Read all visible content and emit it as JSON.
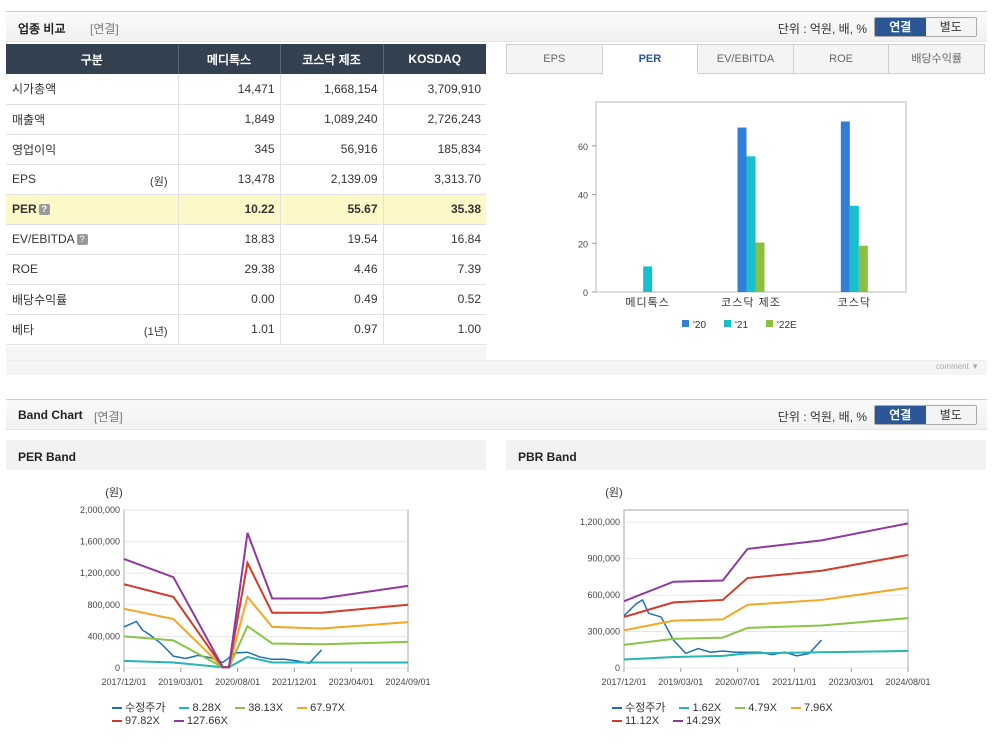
{
  "section1": {
    "title": "업종 비교",
    "sub": "[연결]",
    "unit": "단위 : 억원, 배, %",
    "toggle": [
      "연결",
      "별도"
    ]
  },
  "table": {
    "headers": [
      "구분",
      "메디톡스",
      "코스닥 제조",
      "KOSDAQ"
    ],
    "rows": [
      {
        "label": "시가총액",
        "unit": "",
        "values": [
          "14,471",
          "1,668,154",
          "3,709,910"
        ]
      },
      {
        "label": "매출액",
        "unit": "",
        "values": [
          "1,849",
          "1,089,240",
          "2,726,243"
        ]
      },
      {
        "label": "영업이익",
        "unit": "",
        "values": [
          "345",
          "56,916",
          "185,834"
        ]
      },
      {
        "label": "EPS",
        "unit": "(원)",
        "values": [
          "13,478",
          "2,139.09",
          "3,313.70"
        ]
      },
      {
        "label": "PER",
        "unit": "",
        "values": [
          "10.22",
          "55.67",
          "35.38"
        ]
      },
      {
        "label": "EV/EBITDA",
        "unit": "",
        "values": [
          "18.83",
          "19.54",
          "16.84"
        ]
      },
      {
        "label": "ROE",
        "unit": "",
        "values": [
          "29.38",
          "4.46",
          "7.39"
        ]
      },
      {
        "label": "배당수익률",
        "unit": "",
        "values": [
          "0.00",
          "0.49",
          "0.52"
        ]
      },
      {
        "label": "베타",
        "unit": "(1년)",
        "values": [
          "1.01",
          "0.97",
          "1.00"
        ]
      }
    ]
  },
  "tabs": [
    "EPS",
    "PER",
    "EV/EBITDA",
    "ROE",
    "배당수익률"
  ],
  "comment_label": "comment",
  "section2": {
    "title": "Band Chart",
    "sub": "[연결]",
    "unit": "단위 : 억원, 배, %",
    "toggle": [
      "연결",
      "별도"
    ]
  },
  "colors": {
    "s20": "#2f7fd8",
    "s21": "#19c0cc",
    "s22": "#8cbf3f",
    "price": "#1f6fb5",
    "l1": "#26b5b0",
    "l2": "#8bc34a",
    "l3": "#f5a623",
    "l4": "#d23b2a",
    "l5": "#8e3a9e"
  },
  "chart_data": [
    {
      "type": "bar",
      "title": "PER",
      "categories": [
        "메디톡스",
        "코스닥 제조",
        "코스닥"
      ],
      "series": [
        {
          "name": "'20",
          "values": [
            null,
            67.5,
            70.0
          ]
        },
        {
          "name": "'21",
          "values": [
            10.5,
            55.7,
            35.4
          ]
        },
        {
          "name": "'22E",
          "values": [
            null,
            20.3,
            19.0
          ]
        }
      ],
      "ylim": [
        0,
        80
      ],
      "yticks": [
        0,
        20,
        40,
        60
      ]
    },
    {
      "type": "line",
      "title": "PER Band",
      "ylabel": "(원)",
      "ylim": [
        0,
        2000000
      ],
      "yticks": [
        "0",
        "400,000",
        "800,000",
        "1,200,000",
        "1,600,000",
        "2,000,000"
      ],
      "xticks": [
        "2017/12/01",
        "2019/03/01",
        "2020/08/01",
        "2021/12/01",
        "2023/04/01",
        "2024/09/01"
      ],
      "series": [
        {
          "name": "수정주가",
          "points": [
            [
              0,
              520000
            ],
            [
              1,
              590000
            ],
            [
              1.5,
              480000
            ],
            [
              2,
              430000
            ],
            [
              3,
              310000
            ],
            [
              4,
              150000
            ],
            [
              5,
              120000
            ],
            [
              6,
              160000
            ],
            [
              7,
              130000
            ],
            [
              8,
              70000
            ],
            [
              9,
              190000
            ],
            [
              10,
              200000
            ],
            [
              11,
              140000
            ],
            [
              12,
              110000
            ],
            [
              13,
              110000
            ],
            [
              14,
              90000
            ],
            [
              15,
              60000
            ],
            [
              16,
              230000
            ]
          ]
        },
        {
          "name": "8.28X",
          "points": [
            [
              0,
              90000
            ],
            [
              4,
              70000
            ],
            [
              8,
              10000
            ],
            [
              8.5,
              10000
            ],
            [
              10,
              140000
            ],
            [
              12,
              70000
            ],
            [
              16,
              70000
            ],
            [
              23,
              70000
            ]
          ]
        },
        {
          "name": "38.13X",
          "points": [
            [
              0,
              400000
            ],
            [
              4,
              350000
            ],
            [
              8,
              10000
            ],
            [
              8.5,
              10000
            ],
            [
              10,
              530000
            ],
            [
              12,
              310000
            ],
            [
              16,
              300000
            ],
            [
              23,
              330000
            ]
          ]
        },
        {
          "name": "67.97X",
          "points": [
            [
              0,
              750000
            ],
            [
              4,
              620000
            ],
            [
              8,
              10000
            ],
            [
              8.5,
              10000
            ],
            [
              10,
              900000
            ],
            [
              12,
              520000
            ],
            [
              16,
              500000
            ],
            [
              23,
              580000
            ]
          ]
        },
        {
          "name": "97.82X",
          "points": [
            [
              0,
              1060000
            ],
            [
              4,
              900000
            ],
            [
              8,
              10000
            ],
            [
              8.5,
              10000
            ],
            [
              10,
              1330000
            ],
            [
              12,
              700000
            ],
            [
              16,
              700000
            ],
            [
              23,
              800000
            ]
          ]
        },
        {
          "name": "127.66X",
          "points": [
            [
              0,
              1380000
            ],
            [
              4,
              1150000
            ],
            [
              8,
              10000
            ],
            [
              8.5,
              10000
            ],
            [
              10,
              1710000
            ],
            [
              12,
              880000
            ],
            [
              16,
              880000
            ],
            [
              23,
              1040000
            ]
          ]
        }
      ]
    },
    {
      "type": "line",
      "title": "PBR Band",
      "ylabel": "(원)",
      "ylim": [
        0,
        1300000
      ],
      "yticks": [
        "0",
        "300,000",
        "600,000",
        "900,000",
        "1,200,000"
      ],
      "xticks": [
        "2017/12/01",
        "2019/03/01",
        "2020/07/01",
        "2021/11/01",
        "2023/03/01",
        "2024/08/01"
      ],
      "series": [
        {
          "name": "수정주가",
          "points": [
            [
              0,
              430000
            ],
            [
              1,
              530000
            ],
            [
              1.5,
              560000
            ],
            [
              2,
              450000
            ],
            [
              3,
              420000
            ],
            [
              4,
              230000
            ],
            [
              5,
              120000
            ],
            [
              6,
              160000
            ],
            [
              7,
              130000
            ],
            [
              8,
              140000
            ],
            [
              9,
              130000
            ],
            [
              10,
              130000
            ],
            [
              11,
              130000
            ],
            [
              12,
              110000
            ],
            [
              13,
              130000
            ],
            [
              14,
              100000
            ],
            [
              15,
              120000
            ],
            [
              16,
              230000
            ]
          ]
        },
        {
          "name": "1.62X",
          "points": [
            [
              0,
              70000
            ],
            [
              4,
              90000
            ],
            [
              8,
              100000
            ],
            [
              10,
              120000
            ],
            [
              16,
              130000
            ],
            [
              23,
              140000
            ]
          ]
        },
        {
          "name": "4.79X",
          "points": [
            [
              0,
              190000
            ],
            [
              4,
              240000
            ],
            [
              8,
              250000
            ],
            [
              10,
              330000
            ],
            [
              16,
              350000
            ],
            [
              23,
              410000
            ]
          ]
        },
        {
          "name": "7.96X",
          "points": [
            [
              0,
              310000
            ],
            [
              4,
              390000
            ],
            [
              8,
              400000
            ],
            [
              10,
              520000
            ],
            [
              16,
              560000
            ],
            [
              23,
              660000
            ]
          ]
        },
        {
          "name": "11.12X",
          "points": [
            [
              0,
              420000
            ],
            [
              4,
              540000
            ],
            [
              8,
              560000
            ],
            [
              10,
              740000
            ],
            [
              16,
              800000
            ],
            [
              23,
              930000
            ]
          ]
        },
        {
          "name": "14.29X",
          "points": [
            [
              0,
              550000
            ],
            [
              4,
              710000
            ],
            [
              8,
              720000
            ],
            [
              10,
              980000
            ],
            [
              16,
              1050000
            ],
            [
              23,
              1190000
            ]
          ]
        }
      ]
    }
  ],
  "band_legend": {
    "per": [
      "수정주가",
      "8.28X",
      "38.13X",
      "67.97X",
      "97.82X",
      "127.66X"
    ],
    "pbr": [
      "수정주가",
      "1.62X",
      "4.79X",
      "7.96X",
      "11.12X",
      "14.29X"
    ]
  }
}
